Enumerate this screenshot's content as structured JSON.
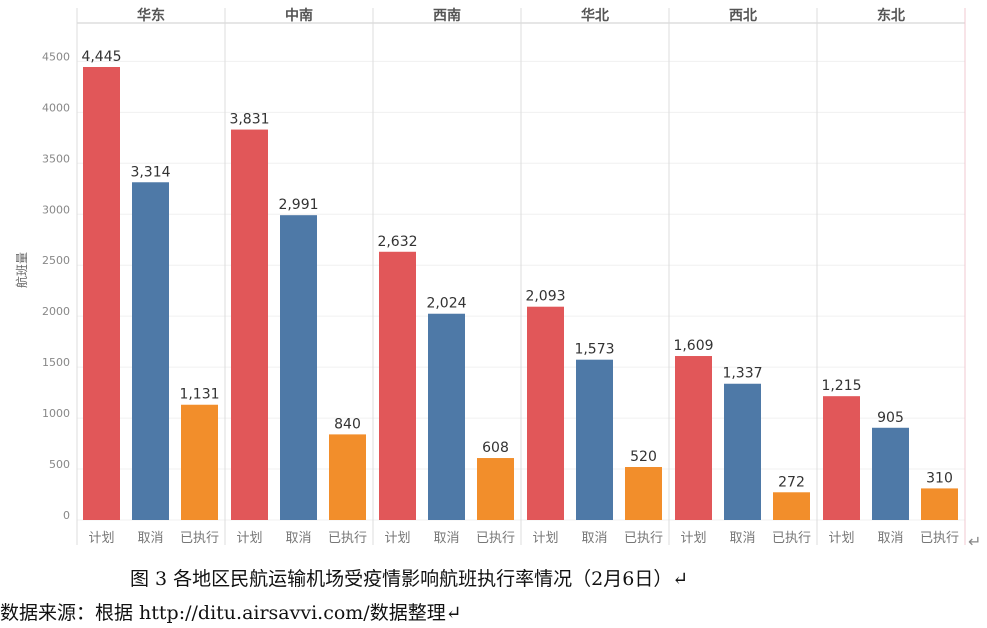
{
  "chart_data": {
    "type": "bar",
    "ylabel": "航班量",
    "ylim": [
      0,
      4500
    ],
    "yticks": [
      0,
      500,
      1000,
      1500,
      2000,
      2500,
      3000,
      3500,
      4000,
      4500
    ],
    "panels": [
      "华东",
      "中南",
      "西南",
      "华北",
      "西北",
      "东北"
    ],
    "categories": [
      "计划",
      "取消",
      "已执行"
    ],
    "colors": [
      "#e15759",
      "#4e79a7",
      "#f28e2b"
    ],
    "values": [
      [
        4445,
        3314,
        1131
      ],
      [
        3831,
        2991,
        840
      ],
      [
        2632,
        2024,
        608
      ],
      [
        2093,
        1573,
        520
      ],
      [
        1609,
        1337,
        272
      ],
      [
        1215,
        905,
        310
      ]
    ],
    "grid": true
  },
  "caption": "图 3 各地区民航运输机场受疫情影响航班执行率情况（2月6日）↵",
  "source": "数据来源：根据 http://ditu.airsavvi.com/数据整理↵",
  "paragraph_mark": "↵"
}
